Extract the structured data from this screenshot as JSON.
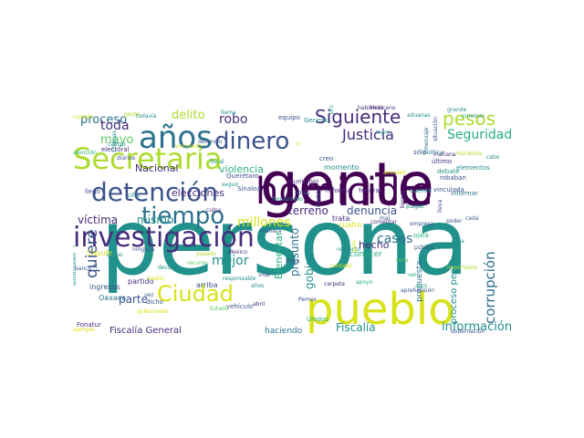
{
  "palette": {
    "dark_purple": "#440154",
    "purple": "#472d7b",
    "indigo": "#3b528b",
    "blue": "#2c728e",
    "teal": "#21918c",
    "green": "#28ae80",
    "lime": "#5ec962",
    "yellow_green": "#addc30",
    "yellow": "#d8e219"
  },
  "words": [
    {
      "text": "persona",
      "c": "teal"
    },
    {
      "text": "gente",
      "c": "dark_purple"
    },
    {
      "text": "pueblo",
      "c": "yellow"
    },
    {
      "text": "homicidio",
      "c": "dark_purple"
    },
    {
      "text": "investigación",
      "c": "purple"
    },
    {
      "text": "Secretaría",
      "c": "yellow_green"
    },
    {
      "text": "detención",
      "c": "indigo"
    },
    {
      "text": "años",
      "c": "blue"
    },
    {
      "text": "dinero",
      "c": "indigo"
    },
    {
      "text": "tiempo",
      "c": "blue"
    },
    {
      "text": "Ciudad",
      "c": "yellow"
    },
    {
      "text": "Siguiente",
      "c": "purple"
    },
    {
      "text": "pesos",
      "c": "yellow_green"
    },
    {
      "text": "Justicia",
      "c": "purple"
    },
    {
      "text": "Seguridad",
      "c": "green"
    },
    {
      "text": "quiere",
      "c": "indigo"
    },
    {
      "text": "corrupción",
      "c": "blue"
    },
    {
      "text": "información",
      "c": "teal"
    },
    {
      "text": "Fiscalía",
      "c": "teal"
    },
    {
      "text": "proceso",
      "c": "blue"
    },
    {
      "text": "delito",
      "c": "yellow_green"
    },
    {
      "text": "robo",
      "c": "purple"
    },
    {
      "text": "toda",
      "c": "purple"
    },
    {
      "text": "mayo",
      "c": "lime"
    },
    {
      "text": "millones",
      "c": "yellow"
    },
    {
      "text": "víctima",
      "c": "purple"
    },
    {
      "text": "mismo",
      "c": "teal"
    },
    {
      "text": "mejor",
      "c": "teal"
    },
    {
      "text": "parte",
      "c": "indigo"
    },
    {
      "text": "Nacional",
      "c": "purple"
    },
    {
      "text": "violencia",
      "c": "green"
    },
    {
      "text": "elecciones",
      "c": "purple"
    },
    {
      "text": "terreno",
      "c": "purple"
    },
    {
      "text": "denuncia",
      "c": "indigo"
    },
    {
      "text": "casos",
      "c": "blue"
    },
    {
      "text": "gobierno",
      "c": "teal"
    },
    {
      "text": "Bienestar",
      "c": "green"
    },
    {
      "text": "presunto",
      "c": "blue"
    },
    {
      "text": "hecho",
      "c": "purple"
    },
    {
      "text": "conocer",
      "c": "green"
    },
    {
      "text": "proceso penal",
      "c": "teal"
    },
    {
      "text": "propuesta",
      "c": "blue"
    },
    {
      "text": "Fiscalía General",
      "c": "purple"
    },
    {
      "text": "haciendo",
      "c": "blue"
    },
    {
      "text": "Oaxaca",
      "c": "blue"
    },
    {
      "text": "ingresos",
      "c": "indigo"
    },
    {
      "text": "arriba",
      "c": "indigo"
    },
    {
      "text": "partido",
      "c": "purple"
    },
    {
      "text": "Capufe",
      "c": "yellow"
    },
    {
      "text": "Sinaloa",
      "c": "indigo"
    },
    {
      "text": "Querétaro",
      "c": "indigo"
    },
    {
      "text": "cargo",
      "c": "teal"
    },
    {
      "text": "creo",
      "c": "indigo"
    },
    {
      "text": "General",
      "c": "teal"
    },
    {
      "text": "equipo",
      "c": "indigo"
    },
    {
      "text": "robaban",
      "c": "indigo"
    },
    {
      "text": "vinculada",
      "c": "indigo"
    },
    {
      "text": "debate",
      "c": "teal"
    },
    {
      "text": "informar",
      "c": "blue"
    },
    {
      "text": "elementos",
      "c": "teal"
    },
    {
      "text": "último",
      "c": "purple"
    },
    {
      "text": "sólo",
      "c": "indigo"
    },
    {
      "text": "mañana",
      "c": "purple"
    },
    {
      "text": "momento",
      "c": "teal"
    },
    {
      "text": "reforma",
      "c": "purple"
    },
    {
      "text": "federal",
      "c": "purple"
    },
    {
      "text": "cuenta",
      "c": "teal"
    },
    {
      "text": "pagar",
      "c": "teal"
    },
    {
      "text": "bien",
      "c": "indigo"
    },
    {
      "text": "vehículo",
      "c": "indigo"
    },
    {
      "text": "Pemex",
      "c": "indigo"
    },
    {
      "text": "Unidos",
      "c": "green"
    },
    {
      "text": "Fonatur",
      "c": "purple"
    },
    {
      "text": "ejemplo",
      "c": "yellow"
    },
    {
      "text": "todavía",
      "c": "teal"
    },
    {
      "text": "llegó",
      "c": "indigo"
    },
    {
      "text": "electoral",
      "c": "purple"
    },
    {
      "text": "detenido",
      "c": "indigo"
    },
    {
      "text": "abajo",
      "c": "indigo"
    },
    {
      "text": "municipio",
      "c": "purple"
    },
    {
      "text": "Mexicano",
      "c": "purple"
    },
    {
      "text": "habiendo",
      "c": "purple"
    },
    {
      "text": "aduanas",
      "c": "teal"
    },
    {
      "text": "grande",
      "c": "teal"
    },
    {
      "text": "cuando",
      "c": "yellow"
    },
    {
      "text": "llama",
      "c": "teal"
    },
    {
      "text": "vinculado",
      "c": "yellow"
    },
    {
      "text": "diarios",
      "c": "indigo"
    },
    {
      "text": "atención",
      "c": "green"
    },
    {
      "text": "Chiapas",
      "c": "teal"
    },
    {
      "text": "cifra",
      "c": "teal"
    },
    {
      "text": "culpa",
      "c": "purple"
    },
    {
      "text": "N",
      "c": "indigo"
    },
    {
      "text": "autoridades",
      "c": "teal"
    },
    {
      "text": "ninguna",
      "c": "indigo"
    },
    {
      "text": "grupo",
      "c": "teal"
    },
    {
      "text": "banco",
      "c": "indigo"
    },
    {
      "text": "regresar",
      "c": "green"
    },
    {
      "text": "dicho",
      "c": "indigo"
    },
    {
      "text": "vez",
      "c": "indigo"
    },
    {
      "text": "carpeta",
      "c": "purple"
    },
    {
      "text": "abril",
      "c": "purple"
    },
    {
      "text": "medio",
      "c": "yellow"
    },
    {
      "text": "fiscal",
      "c": "teal"
    },
    {
      "text": "feminicidio",
      "c": "teal"
    },
    {
      "text": "seguir",
      "c": "teal"
    },
    {
      "text": "Puebla",
      "c": "indigo"
    },
    {
      "text": "trata",
      "c": "purple"
    },
    {
      "text": "cuatro",
      "c": "yellow"
    },
    {
      "text": "mal",
      "c": "indigo"
    },
    {
      "text": "poder",
      "c": "indigo"
    },
    {
      "text": "ojalá",
      "c": "green"
    },
    {
      "text": "empresa",
      "c": "indigo"
    },
    {
      "text": "público",
      "c": "indigo"
    },
    {
      "text": "lleva",
      "c": "indigo"
    },
    {
      "text": "respecto",
      "c": "teal"
    },
    {
      "text": "palo",
      "c": "yellow"
    },
    {
      "text": "aprehensión",
      "c": "indigo"
    },
    {
      "text": "acto",
      "c": "green"
    },
    {
      "text": "importante",
      "c": "yellow_green"
    },
    {
      "text": "casa",
      "c": "teal"
    },
    {
      "text": "cada",
      "c": "indigo"
    },
    {
      "text": "gobernación",
      "c": "indigo"
    },
    {
      "text": "situación",
      "c": "indigo"
    },
    {
      "text": "Hacienda",
      "c": "yellow_green"
    },
    {
      "text": "acusado",
      "c": "yellow"
    },
    {
      "text": "cabo",
      "c": "teal"
    },
    {
      "text": "criminal",
      "c": "teal"
    },
    {
      "text": "vida",
      "c": "indigo"
    },
    {
      "text": "ir",
      "c": "yellow"
    },
    {
      "text": "Mexico",
      "c": "purple"
    },
    {
      "text": "ingre",
      "c": "teal"
    },
    {
      "text": "bienes",
      "c": "purple"
    },
    {
      "text": "política",
      "c": "blue"
    },
    {
      "text": "comentar",
      "c": "purple"
    },
    {
      "text": "responsable",
      "c": "teal"
    },
    {
      "text": "mensaje",
      "c": "blue"
    },
    {
      "text": "programas",
      "c": "green"
    },
    {
      "text": "gobernador",
      "c": "yellow"
    },
    {
      "text": "manera",
      "c": "indigo"
    },
    {
      "text": "gente",
      "c": "yellow_green"
    },
    {
      "text": "apoyo",
      "c": "green"
    },
    {
      "text": "años",
      "c": "teal"
    },
    {
      "text": "Estado",
      "c": "lime"
    },
    {
      "text": "recurso",
      "c": "lime"
    },
    {
      "text": "cuidado",
      "c": "yellow"
    },
    {
      "text": "obra",
      "c": "lime"
    },
    {
      "text": "ver",
      "c": "green"
    },
    {
      "text": "decir",
      "c": "teal"
    },
    {
      "text": "pasado",
      "c": "yellow_green"
    },
    {
      "text": "ejercer",
      "c": "teal"
    }
  ]
}
